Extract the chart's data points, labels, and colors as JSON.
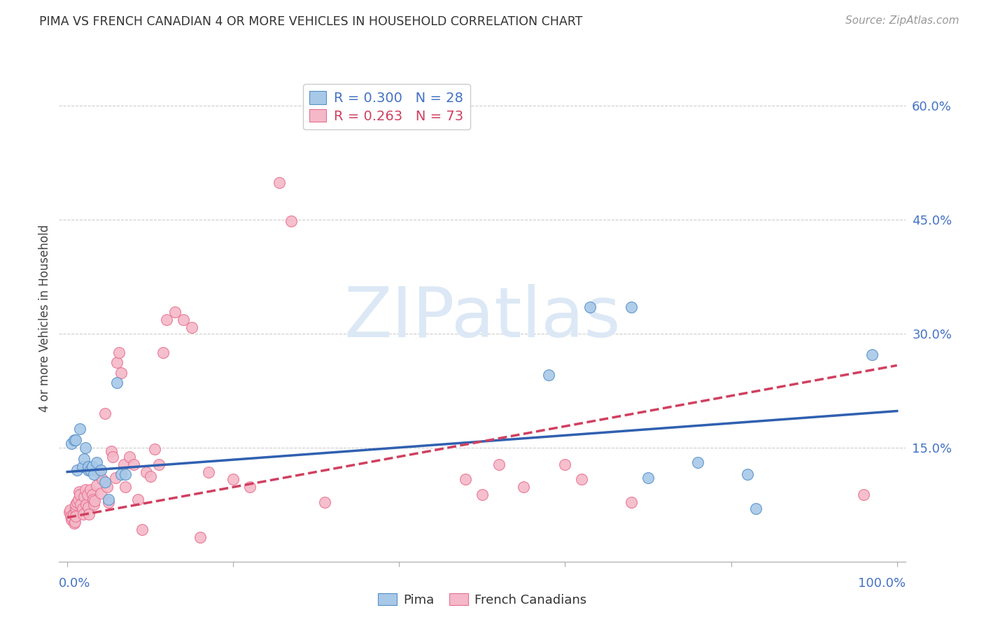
{
  "title": "PIMA VS FRENCH CANADIAN 4 OR MORE VEHICLES IN HOUSEHOLD CORRELATION CHART",
  "source": "Source: ZipAtlas.com",
  "ylabel": "4 or more Vehicles in Household",
  "ylim": [
    0,
    0.64
  ],
  "xlim": [
    -0.01,
    1.01
  ],
  "yticks": [
    0.0,
    0.15,
    0.3,
    0.45,
    0.6
  ],
  "ytick_labels": [
    "",
    "15.0%",
    "30.0%",
    "45.0%",
    "60.0%"
  ],
  "xticks": [
    0.0,
    0.2,
    0.4,
    0.6,
    0.8,
    1.0
  ],
  "legend_pima": "R = 0.300   N = 28",
  "legend_fc": "R = 0.263   N = 73",
  "pima_color": "#a8c8e8",
  "fc_color": "#f4b8c8",
  "pima_edge_color": "#5590c8",
  "fc_edge_color": "#e87090",
  "pima_line_color": "#3060b0",
  "fc_line_color": "#d04060",
  "watermark_color": "#dce8f5",
  "background_color": "#ffffff",
  "pima_x": [
    0.005,
    0.008,
    0.01,
    0.012,
    0.015,
    0.018,
    0.02,
    0.022,
    0.025,
    0.025,
    0.028,
    0.03,
    0.032,
    0.035,
    0.04,
    0.045,
    0.05,
    0.06,
    0.065,
    0.07,
    0.58,
    0.63,
    0.68,
    0.7,
    0.76,
    0.82,
    0.83,
    0.97
  ],
  "pima_y": [
    0.155,
    0.16,
    0.16,
    0.12,
    0.175,
    0.125,
    0.135,
    0.15,
    0.12,
    0.125,
    0.12,
    0.125,
    0.115,
    0.13,
    0.12,
    0.105,
    0.082,
    0.235,
    0.115,
    0.115,
    0.245,
    0.335,
    0.335,
    0.11,
    0.13,
    0.115,
    0.07,
    0.272
  ],
  "fc_x": [
    0.002,
    0.003,
    0.004,
    0.005,
    0.006,
    0.007,
    0.008,
    0.009,
    0.01,
    0.01,
    0.01,
    0.01,
    0.012,
    0.013,
    0.014,
    0.015,
    0.016,
    0.018,
    0.019,
    0.02,
    0.022,
    0.023,
    0.024,
    0.025,
    0.026,
    0.028,
    0.03,
    0.031,
    0.032,
    0.033,
    0.035,
    0.038,
    0.04,
    0.042,
    0.045,
    0.048,
    0.05,
    0.053,
    0.055,
    0.058,
    0.06,
    0.062,
    0.065,
    0.068,
    0.07,
    0.075,
    0.08,
    0.085,
    0.09,
    0.095,
    0.1,
    0.105,
    0.11,
    0.115,
    0.12,
    0.13,
    0.14,
    0.15,
    0.16,
    0.17,
    0.2,
    0.22,
    0.255,
    0.27,
    0.31,
    0.48,
    0.5,
    0.52,
    0.55,
    0.6,
    0.62,
    0.68,
    0.96
  ],
  "fc_y": [
    0.065,
    0.068,
    0.06,
    0.055,
    0.058,
    0.062,
    0.05,
    0.052,
    0.068,
    0.072,
    0.075,
    0.06,
    0.078,
    0.082,
    0.092,
    0.088,
    0.075,
    0.07,
    0.062,
    0.085,
    0.095,
    0.075,
    0.088,
    0.072,
    0.062,
    0.095,
    0.088,
    0.082,
    0.075,
    0.08,
    0.1,
    0.118,
    0.09,
    0.108,
    0.195,
    0.098,
    0.078,
    0.145,
    0.138,
    0.11,
    0.262,
    0.275,
    0.248,
    0.128,
    0.098,
    0.138,
    0.128,
    0.082,
    0.042,
    0.118,
    0.112,
    0.148,
    0.128,
    0.275,
    0.318,
    0.328,
    0.318,
    0.308,
    0.032,
    0.118,
    0.108,
    0.098,
    0.498,
    0.448,
    0.078,
    0.108,
    0.088,
    0.128,
    0.098,
    0.128,
    0.108,
    0.078,
    0.088
  ],
  "pima_trend": [
    0.118,
    0.198
  ],
  "fc_trend": [
    0.058,
    0.258
  ]
}
